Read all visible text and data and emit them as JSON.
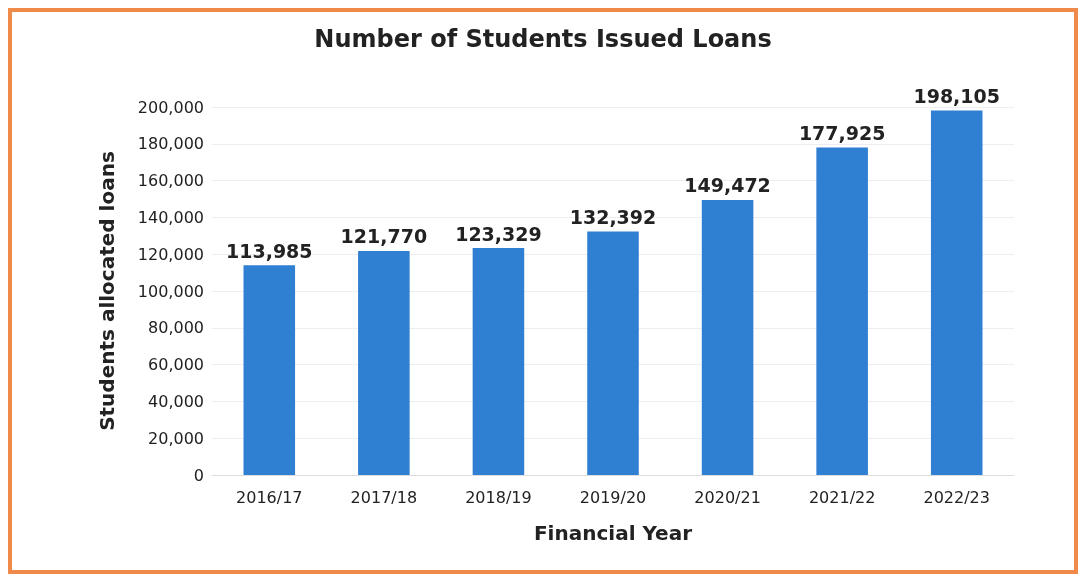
{
  "chart_data": {
    "type": "bar",
    "title": "Number of Students Issued Loans",
    "xlabel": "Financial Year",
    "ylabel": "Students allocated loans",
    "categories": [
      "2016/17",
      "2017/18",
      "2018/19",
      "2019/20",
      "2020/21",
      "2021/22",
      "2022/23"
    ],
    "values": [
      113985,
      121770,
      123329,
      132392,
      149472,
      177925,
      198105
    ],
    "color": "#2f7fd2",
    "ylim": [
      0,
      200000
    ],
    "value_labels": [
      "113,985",
      "121,770",
      "123,329",
      "132,392",
      "149,472",
      "177,925",
      "198,105"
    ],
    "yticks": [
      0,
      {
        "value": 20000,
        "label": "20,000"
      },
      {
        "value": 40000,
        "label": "40,000"
      },
      {
        "value": 60000,
        "label": "60,000"
      },
      {
        "value": 80000,
        "label": "80,000"
      },
      {
        "value": 100000,
        "label": "100,000"
      },
      {
        "value": 120000,
        "label": "120,000"
      },
      {
        "value": 140000,
        "label": "140,000"
      },
      {
        "value": 160000,
        "label": "160,000"
      },
      {
        "value": 180000,
        "label": "180,000"
      },
      {
        "value": 200000,
        "label": "200,000"
      }
    ],
    "grid": "y"
  }
}
